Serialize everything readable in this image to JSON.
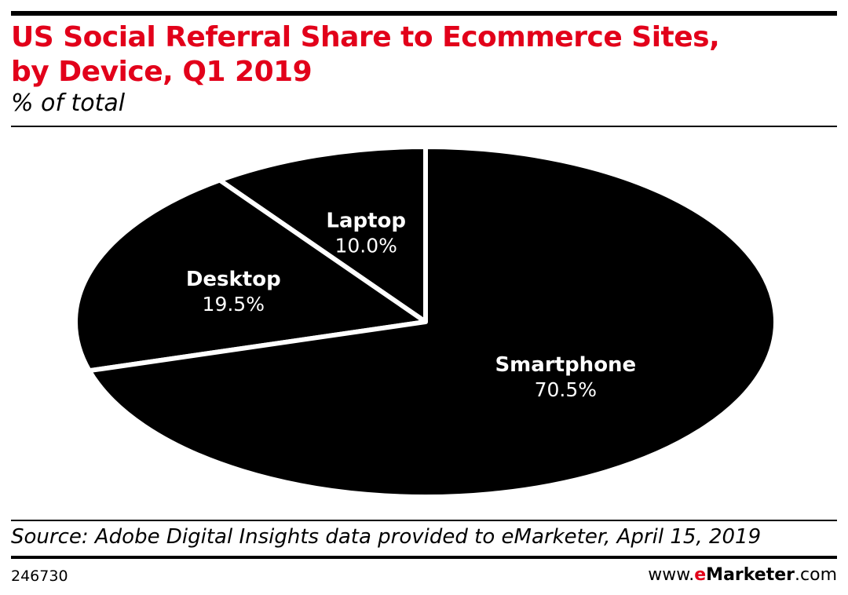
{
  "header": {
    "title_line1": "US Social Referral Share to Ecommerce Sites,",
    "title_line2": "by Device, Q1 2019",
    "subtitle": "% of total"
  },
  "colors": {
    "title": "#e2001a",
    "slice_fill": "#000000",
    "slice_border": "#ffffff",
    "label": "#ffffff",
    "brand_accent": "#e2001a"
  },
  "chart_data": {
    "type": "pie",
    "unit": "%",
    "categories": [
      "Smartphone",
      "Desktop",
      "Laptop"
    ],
    "values": [
      70.5,
      19.5,
      10.0
    ],
    "value_labels": [
      "70.5%",
      "19.5%",
      "10.0%"
    ]
  },
  "footer": {
    "source": "Source: Adobe Digital Insights data provided to eMarketer, April 15, 2019",
    "chart_id": "246730",
    "site_prefix": "www.",
    "site_brand_e": "e",
    "site_brand_rest": "Marketer",
    "site_suffix": ".com"
  }
}
